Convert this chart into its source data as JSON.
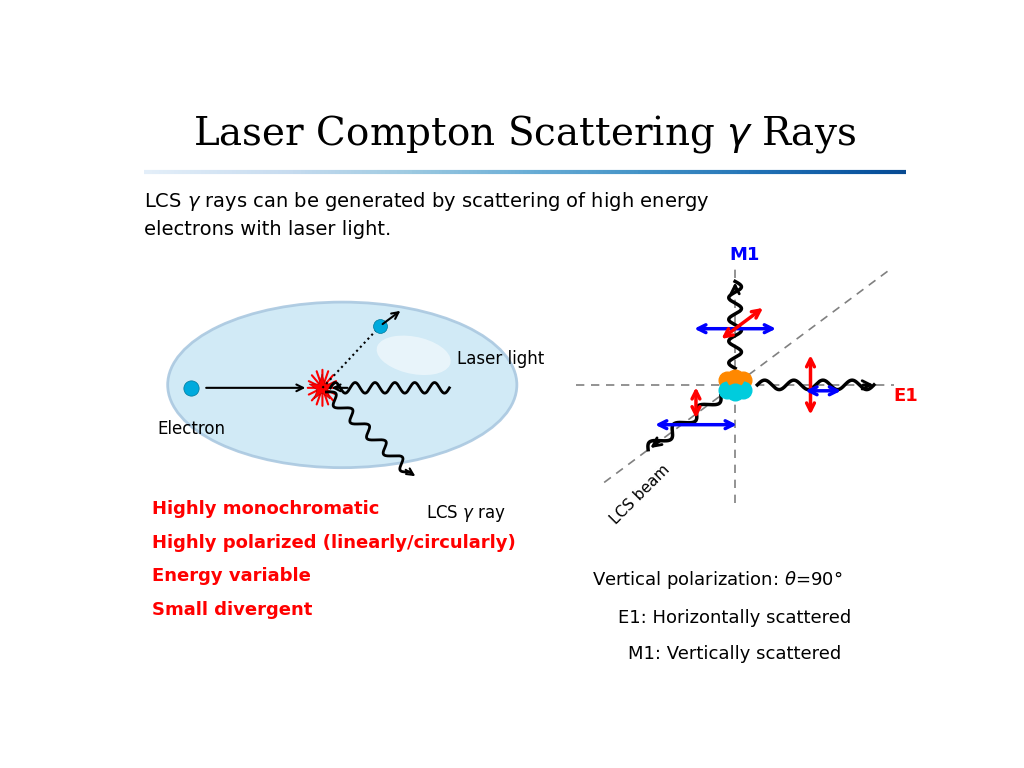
{
  "title": "Laser Compton Scattering $\\gamma$ Rays",
  "subtitle": "LCS $\\gamma$ rays can be generated by scattering of high energy\nelectrons with laser light.",
  "red_bullets": [
    "Highly monochromatic",
    "Highly polarized (linearly/circularly)",
    "Energy variable",
    "Small divergent"
  ],
  "bottom_text": [
    "Vertical polarization: $\\theta$=90°",
    "E1: Horizontally scattered",
    "M1: Vertically scattered"
  ],
  "bg_color": "#ffffff",
  "title_color": "#000000",
  "red_color": "#ff0000",
  "blue_color": "#0000ff",
  "electron_color": "#00aadd"
}
